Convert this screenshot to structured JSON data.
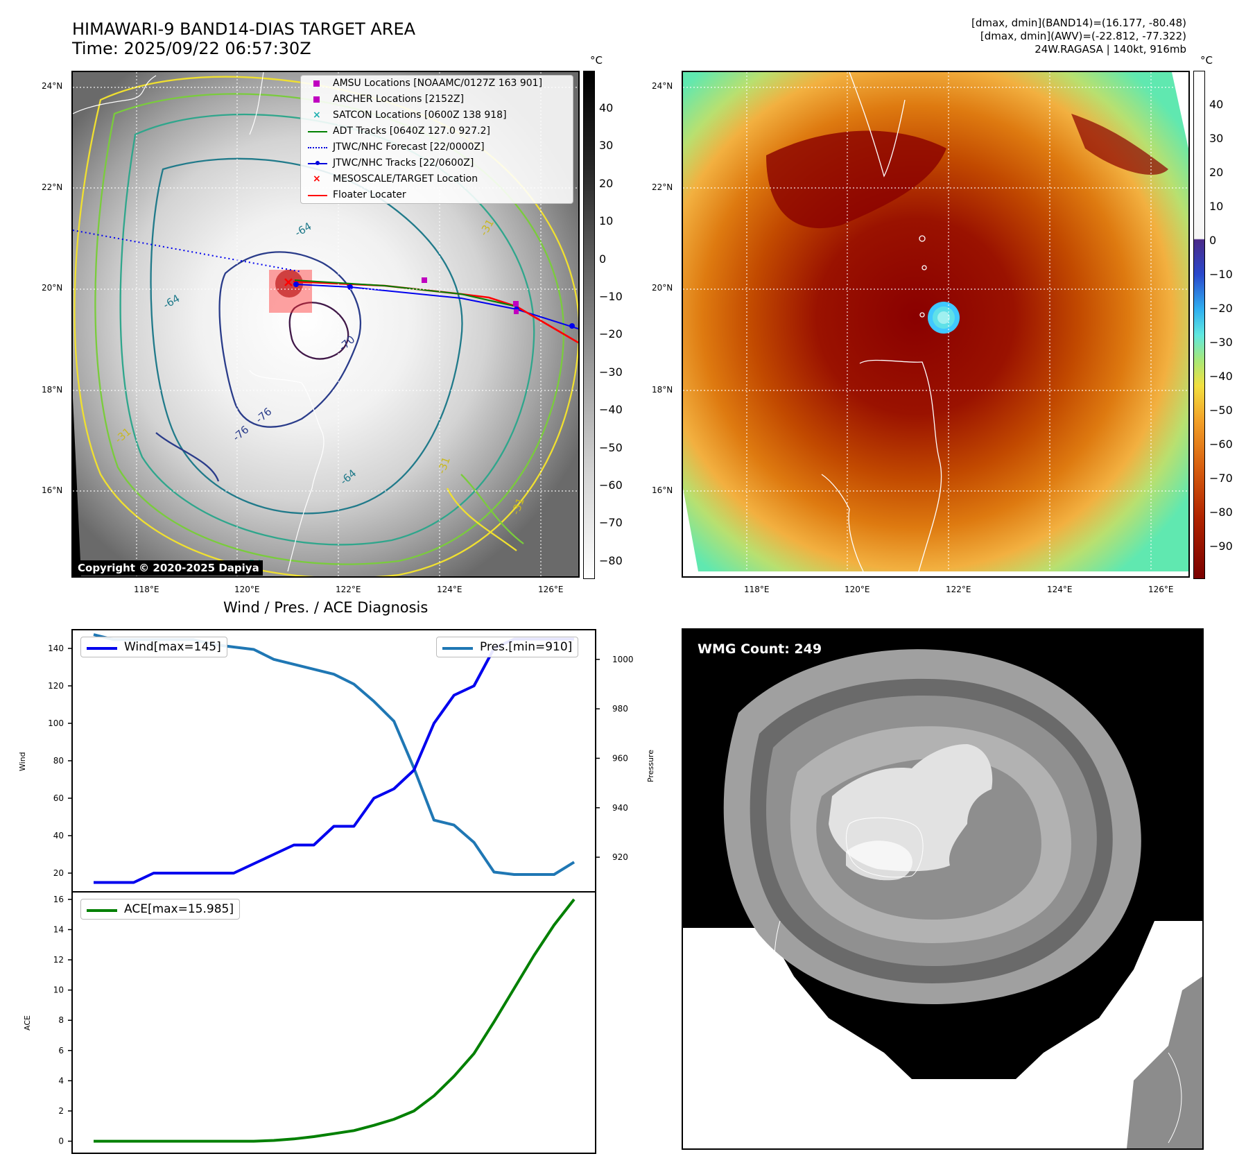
{
  "header": {
    "title_line1": "HIMAWARI-9 BAND14-DIAS TARGET AREA",
    "title_line2": "Time: 2025/09/22 06:57:30Z",
    "info_line1": "[dmax, dmin](BAND14)=(16.177, -80.48)",
    "info_line2": "[dmax, dmin](AWV)=(-22.812, -77.322)",
    "info_line3": "24W.RAGASA | 140kt, 916mb"
  },
  "map_axes": {
    "lon_labels": [
      "118°E",
      "120°E",
      "122°E",
      "124°E",
      "126°E"
    ],
    "lat_labels": [
      "24°N",
      "22°N",
      "20°N",
      "18°N",
      "16°N"
    ]
  },
  "left_map": {
    "legend": [
      {
        "label": "AMSU Locations [NOAAMC/0127Z 163 901]",
        "marker": "square",
        "color": "#c000c0"
      },
      {
        "label": "ARCHER Locations [2152Z]",
        "marker": "square",
        "color": "#c000c0"
      },
      {
        "label": "SATCON Locations [0600Z 138 918]",
        "marker": "x",
        "color": "#20b0b0"
      },
      {
        "label": "ADT Tracks [0640Z 127.0 927.2]",
        "marker": "line",
        "color": "#008000"
      },
      {
        "label": "JTWC/NHC Forecast [22/0000Z]",
        "marker": "dotted",
        "color": "#0000dd"
      },
      {
        "label": "JTWC/NHC Tracks [22/0600Z]",
        "marker": "linedot",
        "color": "#0000dd"
      },
      {
        "label": "MESOSCALE/TARGET Location",
        "marker": "x",
        "color": "#ff0000"
      },
      {
        "label": "Floater Locater",
        "marker": "line",
        "color": "#ff0000"
      }
    ],
    "copyright": "Copyright © 2020-2025 Dapiya",
    "contour_labels": [
      "-64",
      "-64",
      "-70",
      "-76",
      "-76",
      "-64",
      "-31",
      "-31",
      "-31",
      "-54",
      "-31"
    ]
  },
  "left_colorbar": {
    "unit": "°C",
    "ticks": [
      "40",
      "30",
      "20",
      "10",
      "0",
      "−10",
      "−20",
      "−30",
      "−40",
      "−50",
      "−60",
      "−70",
      "−80"
    ]
  },
  "right_colorbar": {
    "unit": "°C",
    "ticks": [
      "40",
      "30",
      "20",
      "10",
      "0",
      "−10",
      "−20",
      "−30",
      "−40",
      "−50",
      "−60",
      "−70",
      "−80",
      "−90"
    ]
  },
  "wmg": {
    "label": "WMG Count: 249"
  },
  "chart_data": [
    {
      "type": "line",
      "title": "Wind / Pres. / ACE Diagnosis",
      "ylabel": "Wind",
      "y2label": "Pressure",
      "ylim": [
        10,
        150
      ],
      "y2lim": [
        906,
        1012
      ],
      "yticks": [
        "20",
        "40",
        "60",
        "80",
        "100",
        "120",
        "140"
      ],
      "y2ticks": [
        "920",
        "940",
        "960",
        "980",
        "1000"
      ],
      "series": [
        {
          "name": "Wind[max=145]",
          "axis": "left",
          "color": "#0000ee",
          "values": [
            15,
            15,
            15,
            20,
            20,
            20,
            20,
            20,
            25,
            30,
            35,
            35,
            45,
            45,
            60,
            65,
            75,
            100,
            115,
            120,
            140,
            145,
            145,
            145,
            145
          ]
        },
        {
          "name": "Pres.[min=910]",
          "axis": "right",
          "color": "#1f77b4",
          "values": [
            1010,
            1008,
            1008,
            1008,
            1008,
            1008,
            1006,
            1005,
            1004,
            1000,
            998,
            996,
            994,
            990,
            983,
            975,
            956,
            935,
            933,
            926,
            914,
            913,
            913,
            913,
            918
          ]
        }
      ]
    },
    {
      "type": "line",
      "ylabel": "ACE",
      "ylim": [
        -0.8,
        16.5
      ],
      "yticks": [
        "0",
        "2",
        "4",
        "6",
        "8",
        "10",
        "12",
        "14",
        "16"
      ],
      "series": [
        {
          "name": "ACE[max=15.985]",
          "axis": "left",
          "color": "#008000",
          "values": [
            0,
            0,
            0,
            0,
            0,
            0,
            0,
            0,
            0,
            0.05,
            0.15,
            0.3,
            0.5,
            0.7,
            1.05,
            1.45,
            2.0,
            3.0,
            4.3,
            5.8,
            7.9,
            10.1,
            12.3,
            14.3,
            16.0
          ]
        }
      ]
    }
  ]
}
